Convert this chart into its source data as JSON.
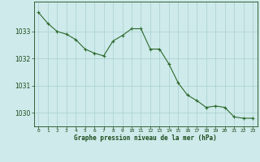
{
  "x": [
    0,
    1,
    2,
    3,
    4,
    5,
    6,
    7,
    8,
    9,
    10,
    11,
    12,
    13,
    14,
    15,
    16,
    17,
    18,
    19,
    20,
    21,
    22,
    23
  ],
  "y": [
    1033.7,
    1033.3,
    1033.0,
    1032.9,
    1032.7,
    1032.35,
    1032.2,
    1032.1,
    1032.65,
    1032.85,
    1033.1,
    1033.1,
    1032.35,
    1032.35,
    1031.8,
    1031.1,
    1030.65,
    1030.45,
    1030.2,
    1030.25,
    1030.2,
    1029.85,
    1029.8,
    1029.8
  ],
  "line_color": "#2d6a2d",
  "marker_color": "#2d6a2d",
  "bg_color": "#ceeaea",
  "grid_color": "#aacfcf",
  "axis_label_color": "#1a4a1a",
  "ylim": [
    1029.5,
    1034.1
  ],
  "yticks": [
    1030,
    1031,
    1032,
    1033
  ],
  "xticks": [
    0,
    1,
    2,
    3,
    4,
    5,
    6,
    7,
    8,
    9,
    10,
    11,
    12,
    13,
    14,
    15,
    16,
    17,
    18,
    19,
    20,
    21,
    22,
    23
  ],
  "xlabel": "Graphe pression niveau de la mer (hPa)"
}
